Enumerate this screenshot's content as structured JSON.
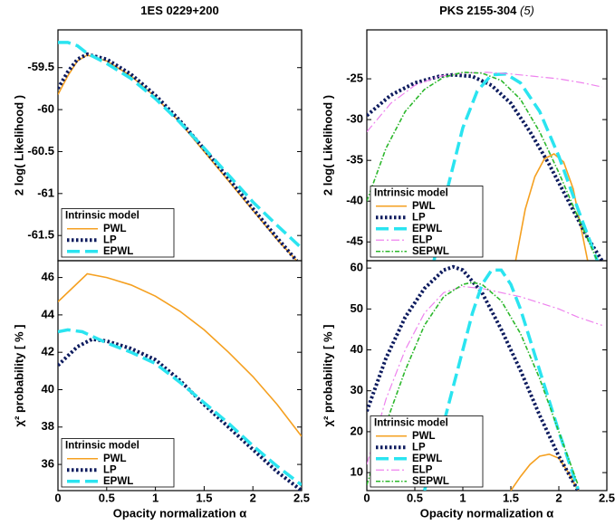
{
  "chart_data": [
    {
      "type": "line",
      "title": "1ES 0229+200",
      "ylabel": "2 log( Likelihood )",
      "xlim": [
        0,
        2.5
      ],
      "ylim": [
        -61.8,
        -59.05
      ],
      "yticks": [
        -59.5,
        -60,
        -60.5,
        -61,
        -61.5
      ],
      "legend_title": "Intrinsic model",
      "legend": "lower left",
      "series": [
        {
          "name": "PWL",
          "color": "#f5a020",
          "style": "solid",
          "x": [
            0,
            0.1,
            0.2,
            0.3,
            0.5,
            0.75,
            1,
            1.25,
            1.5,
            1.75,
            2,
            2.25,
            2.45
          ],
          "values": [
            -59.82,
            -59.6,
            -59.42,
            -59.35,
            -59.42,
            -59.6,
            -59.85,
            -60.15,
            -60.5,
            -60.85,
            -61.2,
            -61.55,
            -61.8
          ]
        },
        {
          "name": "LP",
          "color": "#0d1b5e",
          "style": "dotted",
          "x": [
            0,
            0.1,
            0.2,
            0.3,
            0.5,
            0.75,
            1,
            1.25,
            1.5,
            1.75,
            2,
            2.25,
            2.45
          ],
          "values": [
            -59.75,
            -59.55,
            -59.4,
            -59.34,
            -59.4,
            -59.58,
            -59.83,
            -60.13,
            -60.47,
            -60.82,
            -61.18,
            -61.53,
            -61.8
          ]
        },
        {
          "name": "EPWL",
          "color": "#2ae4f0",
          "style": "dashed",
          "x": [
            0,
            0.1,
            0.2,
            0.3,
            0.5,
            0.75,
            1,
            1.25,
            1.5,
            1.75,
            2,
            2.25,
            2.5
          ],
          "values": [
            -59.2,
            -59.2,
            -59.24,
            -59.33,
            -59.45,
            -59.63,
            -59.87,
            -60.15,
            -60.46,
            -60.78,
            -61.1,
            -61.38,
            -61.65
          ]
        }
      ]
    },
    {
      "type": "line",
      "title": "PKS 2155-304",
      "title_note": "(5)",
      "ylabel": "2 log( Likelihood )",
      "xlim": [
        0,
        2.5
      ],
      "ylim": [
        -47.3,
        -19
      ],
      "yticks": [
        -25,
        -30,
        -35,
        -40,
        -45
      ],
      "legend_title": "Intrinsic model",
      "legend": "lower left",
      "series": [
        {
          "name": "PWL",
          "color": "#f5a020",
          "style": "solid",
          "x": [
            1.55,
            1.65,
            1.75,
            1.85,
            1.95,
            2.05,
            2.15,
            2.3
          ],
          "values": [
            -47.3,
            -41,
            -37,
            -34.8,
            -34.2,
            -35.2,
            -38.5,
            -47.3
          ]
        },
        {
          "name": "LP",
          "color": "#0d1b5e",
          "style": "dotted",
          "x": [
            0,
            0.25,
            0.5,
            0.75,
            0.9,
            1.1,
            1.3,
            1.5,
            1.7,
            1.9,
            2.1,
            2.3,
            2.45
          ],
          "values": [
            -29.5,
            -27,
            -25.5,
            -24.7,
            -24.5,
            -24.7,
            -25.8,
            -28,
            -31.5,
            -35.5,
            -40,
            -44.5,
            -47.3
          ]
        },
        {
          "name": "EPWL",
          "color": "#2ae4f0",
          "style": "dashed",
          "x": [
            0.7,
            0.85,
            1,
            1.15,
            1.3,
            1.45,
            1.6,
            1.8,
            2,
            2.2,
            2.4
          ],
          "values": [
            -47.3,
            -38,
            -31,
            -26.5,
            -24.5,
            -24.4,
            -25.5,
            -29,
            -34.5,
            -41,
            -47.3
          ]
        },
        {
          "name": "ELP",
          "color": "#ee82ee",
          "style": "dashdot",
          "x": [
            0,
            0.25,
            0.5,
            0.75,
            1,
            1.25,
            1.5,
            1.75,
            2,
            2.25,
            2.45
          ],
          "values": [
            -31.5,
            -28,
            -25.8,
            -24.7,
            -24.3,
            -24.2,
            -24.4,
            -24.7,
            -25,
            -25.5,
            -26
          ]
        },
        {
          "name": "SEPWL",
          "color": "#2db82d",
          "style": "dashdotdense",
          "x": [
            0,
            0.2,
            0.4,
            0.6,
            0.8,
            1,
            1.2,
            1.4,
            1.6,
            1.8,
            2,
            2.2,
            2.4
          ],
          "values": [
            -40,
            -33.5,
            -29,
            -26.3,
            -24.8,
            -24.2,
            -24.3,
            -25.2,
            -27.5,
            -31.5,
            -36.5,
            -42,
            -47.3
          ]
        }
      ]
    },
    {
      "type": "line",
      "xlabel": "Opacity normalization α",
      "ylabel": "χ² probability [ % ]",
      "xlim": [
        0,
        2.5
      ],
      "ylim": [
        34.6,
        46.9
      ],
      "xticks": [
        0,
        0.5,
        1,
        1.5,
        2,
        2.5
      ],
      "yticks": [
        36,
        38,
        40,
        42,
        44,
        46
      ],
      "legend_title": "Intrinsic model",
      "legend": "lower left",
      "series": [
        {
          "name": "PWL",
          "color": "#f5a020",
          "style": "solid",
          "x": [
            0,
            0.3,
            0.5,
            0.75,
            1,
            1.25,
            1.5,
            1.75,
            2,
            2.25,
            2.5
          ],
          "values": [
            44.7,
            46.2,
            46,
            45.6,
            45,
            44.2,
            43.2,
            42,
            40.7,
            39.2,
            37.5
          ]
        },
        {
          "name": "LP",
          "color": "#0d1b5e",
          "style": "dotted",
          "x": [
            0,
            0.2,
            0.35,
            0.5,
            0.75,
            1,
            1.25,
            1.5,
            1.75,
            2,
            2.25,
            2.5
          ],
          "values": [
            41.3,
            42.3,
            42.7,
            42.6,
            42.2,
            41.6,
            40.5,
            39.2,
            38,
            36.8,
            35.6,
            34.6
          ]
        },
        {
          "name": "EPWL",
          "color": "#2ae4f0",
          "style": "dashed",
          "x": [
            0,
            0.1,
            0.25,
            0.5,
            0.75,
            1,
            1.25,
            1.5,
            1.75,
            2,
            2.25,
            2.5
          ],
          "values": [
            43.1,
            43.2,
            43.1,
            42.5,
            42,
            41.4,
            40.4,
            39.3,
            38.2,
            37,
            35.9,
            34.9
          ]
        }
      ]
    },
    {
      "type": "line",
      "xlabel": "Opacity normalization α",
      "ylabel": "χ² probability [ % ]",
      "xlim": [
        0,
        2.5
      ],
      "ylim": [
        5.6,
        61.8
      ],
      "xticks": [
        0,
        0.5,
        1,
        1.5,
        2,
        2.5
      ],
      "yticks": [
        10,
        20,
        30,
        40,
        50,
        60
      ],
      "legend_title": "Intrinsic model",
      "legend": "lower left",
      "series": [
        {
          "name": "PWL",
          "color": "#f5a020",
          "style": "solid",
          "x": [
            1.5,
            1.6,
            1.7,
            1.8,
            1.9,
            2,
            2.1,
            2.2
          ],
          "values": [
            5.6,
            9,
            12,
            14,
            14.5,
            13.5,
            10,
            5.6
          ]
        },
        {
          "name": "LP",
          "color": "#0d1b5e",
          "style": "dotted",
          "x": [
            0,
            0.2,
            0.4,
            0.6,
            0.8,
            0.9,
            1,
            1.2,
            1.4,
            1.6,
            1.8,
            2,
            2.2
          ],
          "values": [
            25,
            38,
            48,
            55,
            59.5,
            60.3,
            59.5,
            54,
            45,
            35,
            24,
            14,
            5.6
          ]
        },
        {
          "name": "EPWL",
          "color": "#2ae4f0",
          "style": "dashed",
          "x": [
            0.6,
            0.8,
            1,
            1.1,
            1.2,
            1.3,
            1.4,
            1.5,
            1.6,
            1.8,
            2,
            2.2
          ],
          "values": [
            5.6,
            22,
            40,
            49,
            56,
            59.5,
            59.5,
            56,
            50,
            35,
            20,
            6
          ]
        },
        {
          "name": "ELP",
          "color": "#ee82ee",
          "style": "dashdot",
          "x": [
            0,
            0.2,
            0.4,
            0.6,
            0.8,
            1,
            1.2,
            1.4,
            1.6,
            1.8,
            2,
            2.2,
            2.45
          ],
          "values": [
            12,
            28,
            40,
            49,
            54,
            55.5,
            55,
            54,
            53,
            51.5,
            50,
            48,
            46
          ]
        },
        {
          "name": "SEPWL",
          "color": "#2db82d",
          "style": "dashdotdense",
          "x": [
            0,
            0.2,
            0.4,
            0.6,
            0.8,
            1,
            1.1,
            1.2,
            1.4,
            1.6,
            1.8,
            2,
            2.2
          ],
          "values": [
            7,
            22,
            35,
            46,
            53,
            56,
            56.5,
            56,
            52,
            44,
            33,
            20,
            7
          ]
        }
      ]
    }
  ]
}
